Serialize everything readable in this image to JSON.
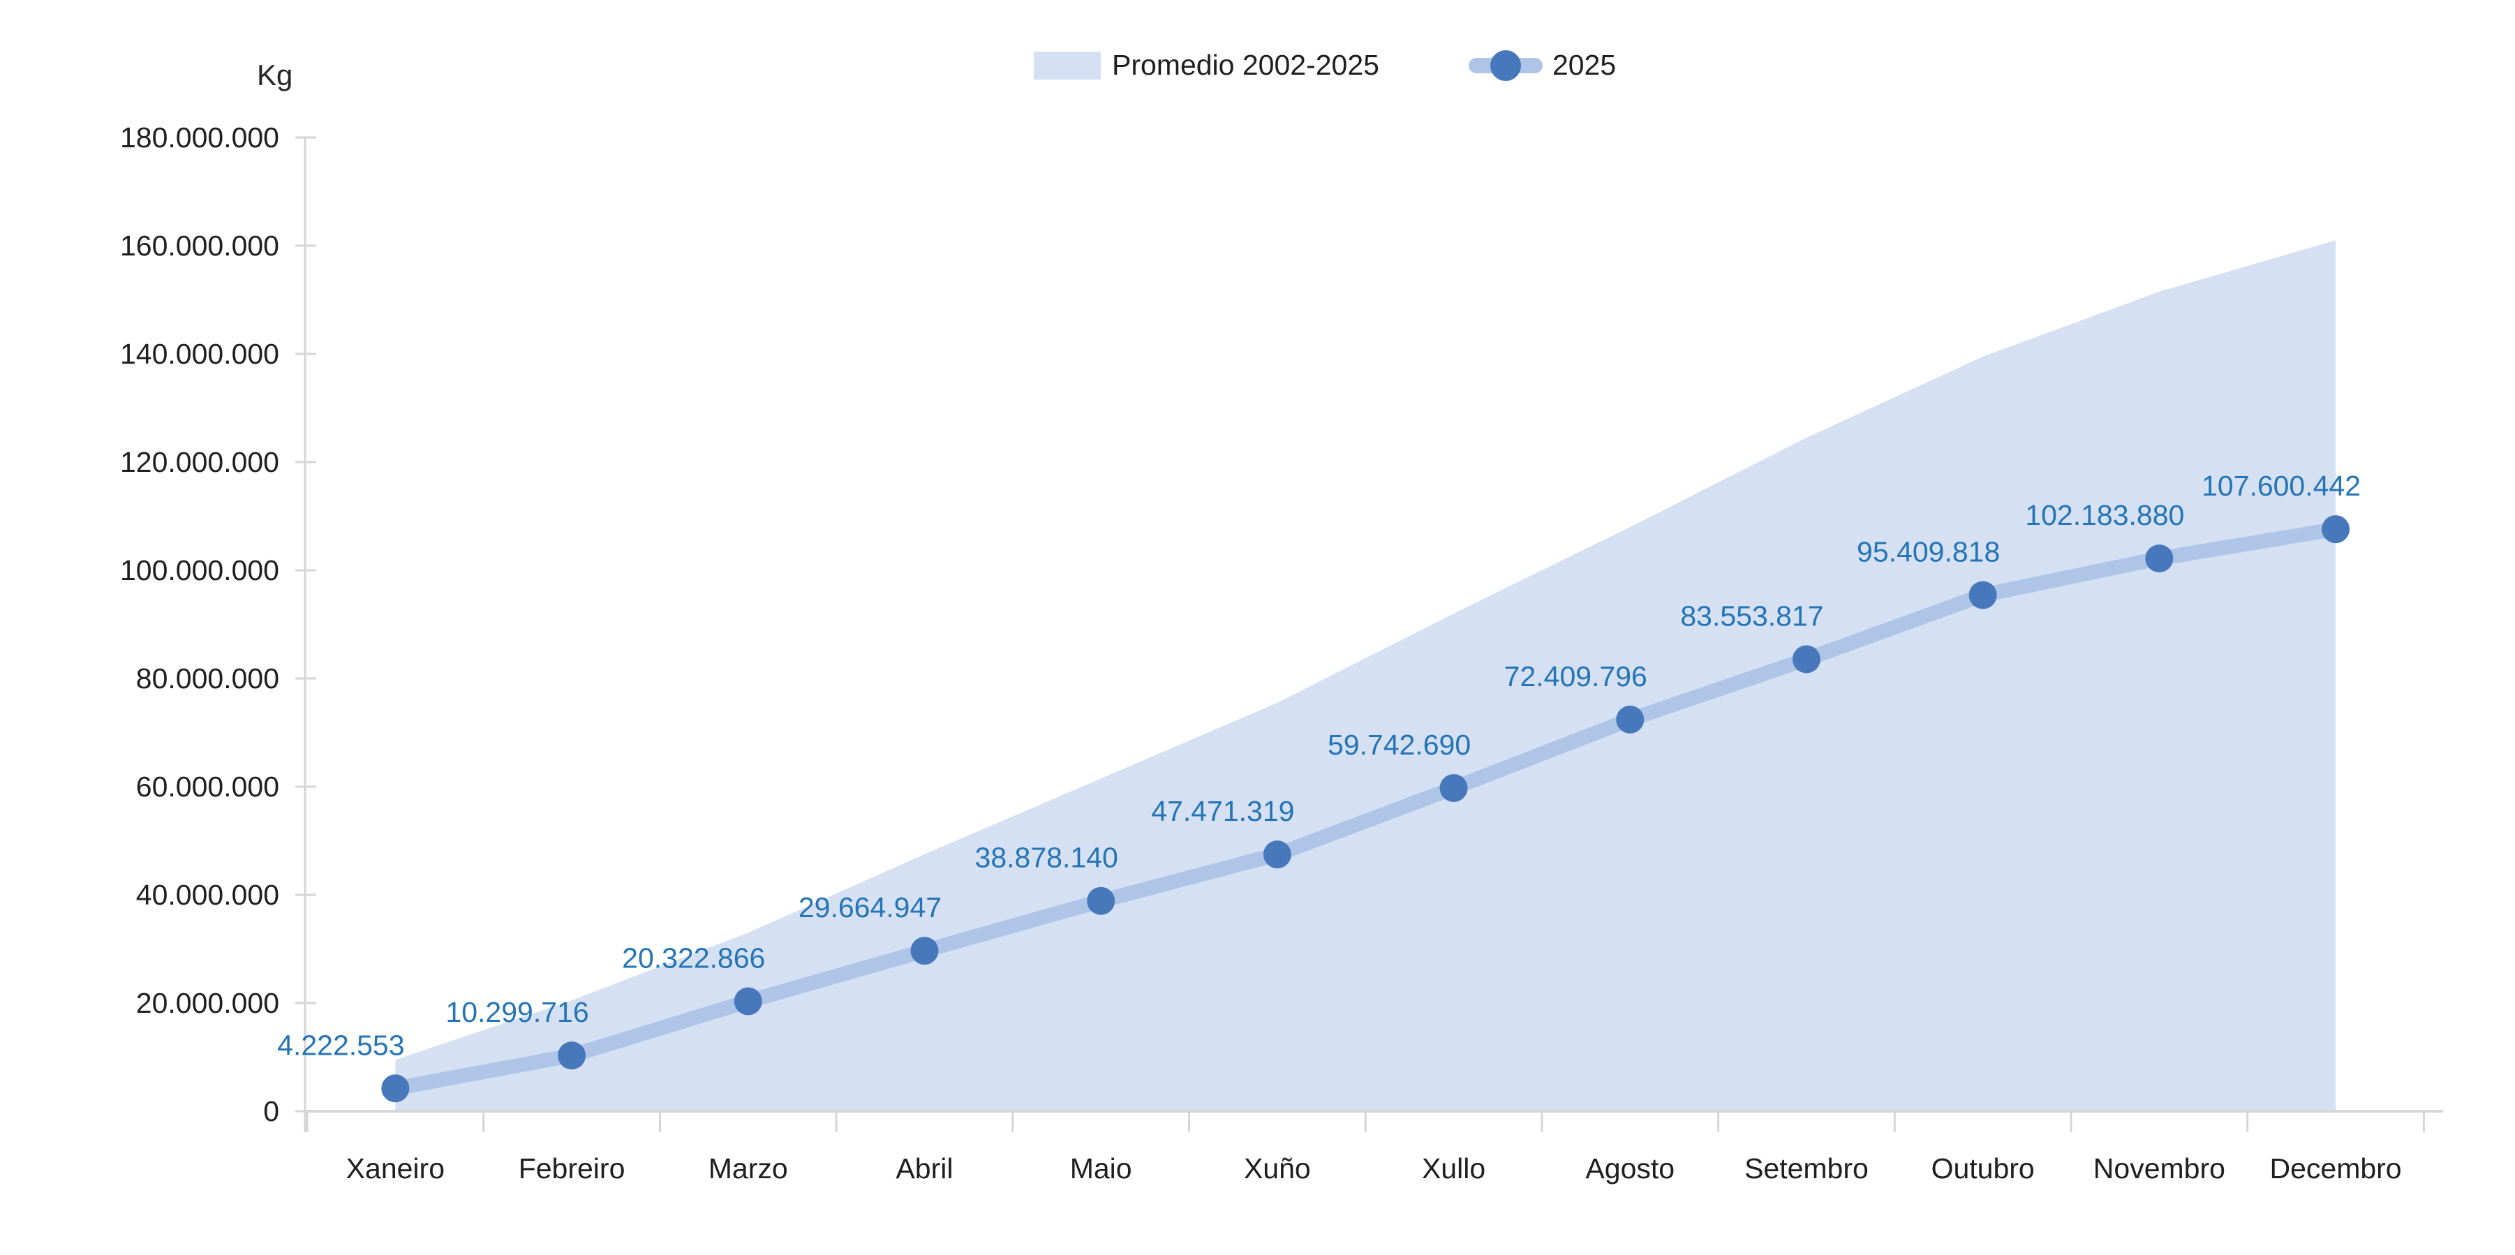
{
  "chart_data": {
    "type": "line",
    "title": "",
    "unit_label": "Kg",
    "xlabel": "",
    "ylabel": "Kg",
    "categories": [
      "Xaneiro",
      "Febreiro",
      "Marzo",
      "Abril",
      "Maio",
      "Xuño",
      "Xullo",
      "Agosto",
      "Setembro",
      "Outubro",
      "Novembro",
      "Decembro"
    ],
    "series": [
      {
        "name": "Promedio 2002-2025",
        "type": "area",
        "color": "#D5E1F3",
        "values_estimated": true,
        "values": [
          9500000,
          20500000,
          33000000,
          47500000,
          61500000,
          75500000,
          92000000,
          108000000,
          124500000,
          139500000,
          151500000,
          161000000
        ]
      },
      {
        "name": "2025",
        "type": "line",
        "color": "#AFC5E8",
        "marker_color": "#4878BC",
        "values": [
          4222553,
          10299716,
          20322866,
          29664947,
          38878140,
          47471319,
          59742690,
          72409796,
          83553817,
          95409818,
          102183880,
          107600442
        ],
        "labels": [
          "4.222.553",
          "10.299.716",
          "20.322.866",
          "29.664.947",
          "38.878.140",
          "47.471.319",
          "59.742.690",
          "72.409.796",
          "83.553.817",
          "95.409.818",
          "102.183.880",
          "107.600.442"
        ]
      }
    ],
    "ylim": [
      0,
      180000000
    ],
    "ytick_step": 20000000,
    "ytick_labels": [
      "0",
      "20.000.000",
      "40.000.000",
      "60.000.000",
      "80.000.000",
      "100.000.000",
      "120.000.000",
      "140.000.000",
      "160.000.000",
      "180.000.000"
    ],
    "legend_position": "top-center",
    "grid": false,
    "value_label_color": "#2574B5",
    "axis_color": "#D6D6D6",
    "text_color": "#1F1F1F"
  }
}
